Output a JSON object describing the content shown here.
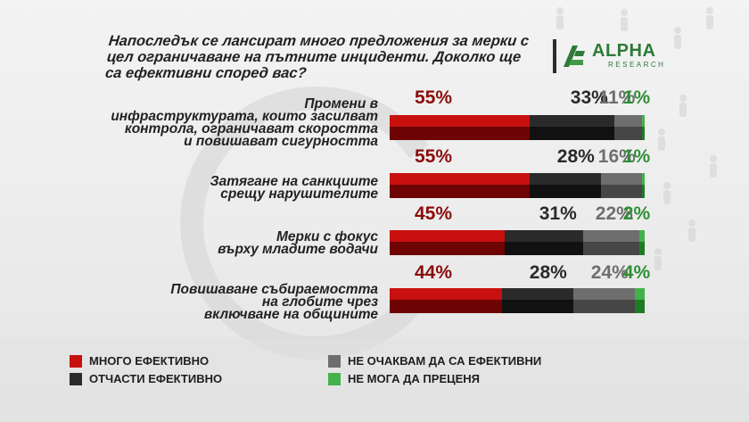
{
  "title": "Напоследък се лансират много предложения за мерки с цел ограничаване на пътните инциденти. Доколко ще са ефективни според вас?",
  "logo": {
    "name": "ALPHA",
    "sub": "RESEARCH",
    "color": "#2e7a37"
  },
  "colors": {
    "very_effective": "#c8100e",
    "very_effective_dark": "#6e0404",
    "partly_effective": "#2a2a2a",
    "partly_effective_dark": "#111111",
    "not_effective": "#6e6e6e",
    "not_effective_dark": "#464646",
    "cant_judge": "#43b24a",
    "cant_judge_dark": "#1f7a25"
  },
  "chart_data": {
    "type": "bar",
    "orientation": "horizontal",
    "stacked": true,
    "title": "Напоследък се лансират много предложения за мерки с цел ограничаване на пътните инциденти. Доколко ще са ефективни според вас?",
    "categories": [
      "Промени в инфраструктурата, които засилват контрола, ограничават скоростта и повишават сигурността",
      "Затягане на санкциите срещу нарушителите",
      "Мерки с фокус върху младите водачи",
      "Повишаване събираемостта на глобите чрез включване на общините"
    ],
    "category_lines": [
      "Промени в\nинфраструктурата, които засилват\nконтрола, ограничават скоростта\nи повишават сигурността",
      "Затягане на санкциите\nсрещу нарушителите",
      "Мерки с фокус\nвърху младите водачи",
      "Повишаване събираемостта\nна глобите чрез\nвключване на общините"
    ],
    "series": [
      {
        "name": "МНОГО ЕФЕКТИВНО",
        "values": [
          55,
          55,
          45,
          44
        ]
      },
      {
        "name": "ОТЧАСТИ ЕФЕКТИВНО",
        "values": [
          33,
          28,
          31,
          28
        ]
      },
      {
        "name": "НЕ ОЧАКВАМ ДА СА ЕФЕКТИВНИ",
        "values": [
          11,
          16,
          22,
          24
        ]
      },
      {
        "name": "НЕ МОГА ДА ПРЕЦЕНЯ",
        "values": [
          1,
          1,
          2,
          4
        ]
      }
    ],
    "labels": [
      [
        "55%",
        "33%",
        "11%",
        "1%"
      ],
      [
        "55%",
        "28%",
        "16%",
        "1%"
      ],
      [
        "45%",
        "31%",
        "22%",
        "2%"
      ],
      [
        "44%",
        "28%",
        "24%",
        "4%"
      ]
    ],
    "legend_position": "bottom",
    "xlim": [
      0,
      100
    ]
  },
  "legend": [
    {
      "label": "МНОГО ЕФЕКТИВНО"
    },
    {
      "label": "ОТЧАСТИ ЕФЕКТИВНО"
    },
    {
      "label": "НЕ ОЧАКВАМ ДА СА ЕФЕКТИВНИ"
    },
    {
      "label": "НЕ МОГА ДА ПРЕЦЕНЯ"
    }
  ]
}
